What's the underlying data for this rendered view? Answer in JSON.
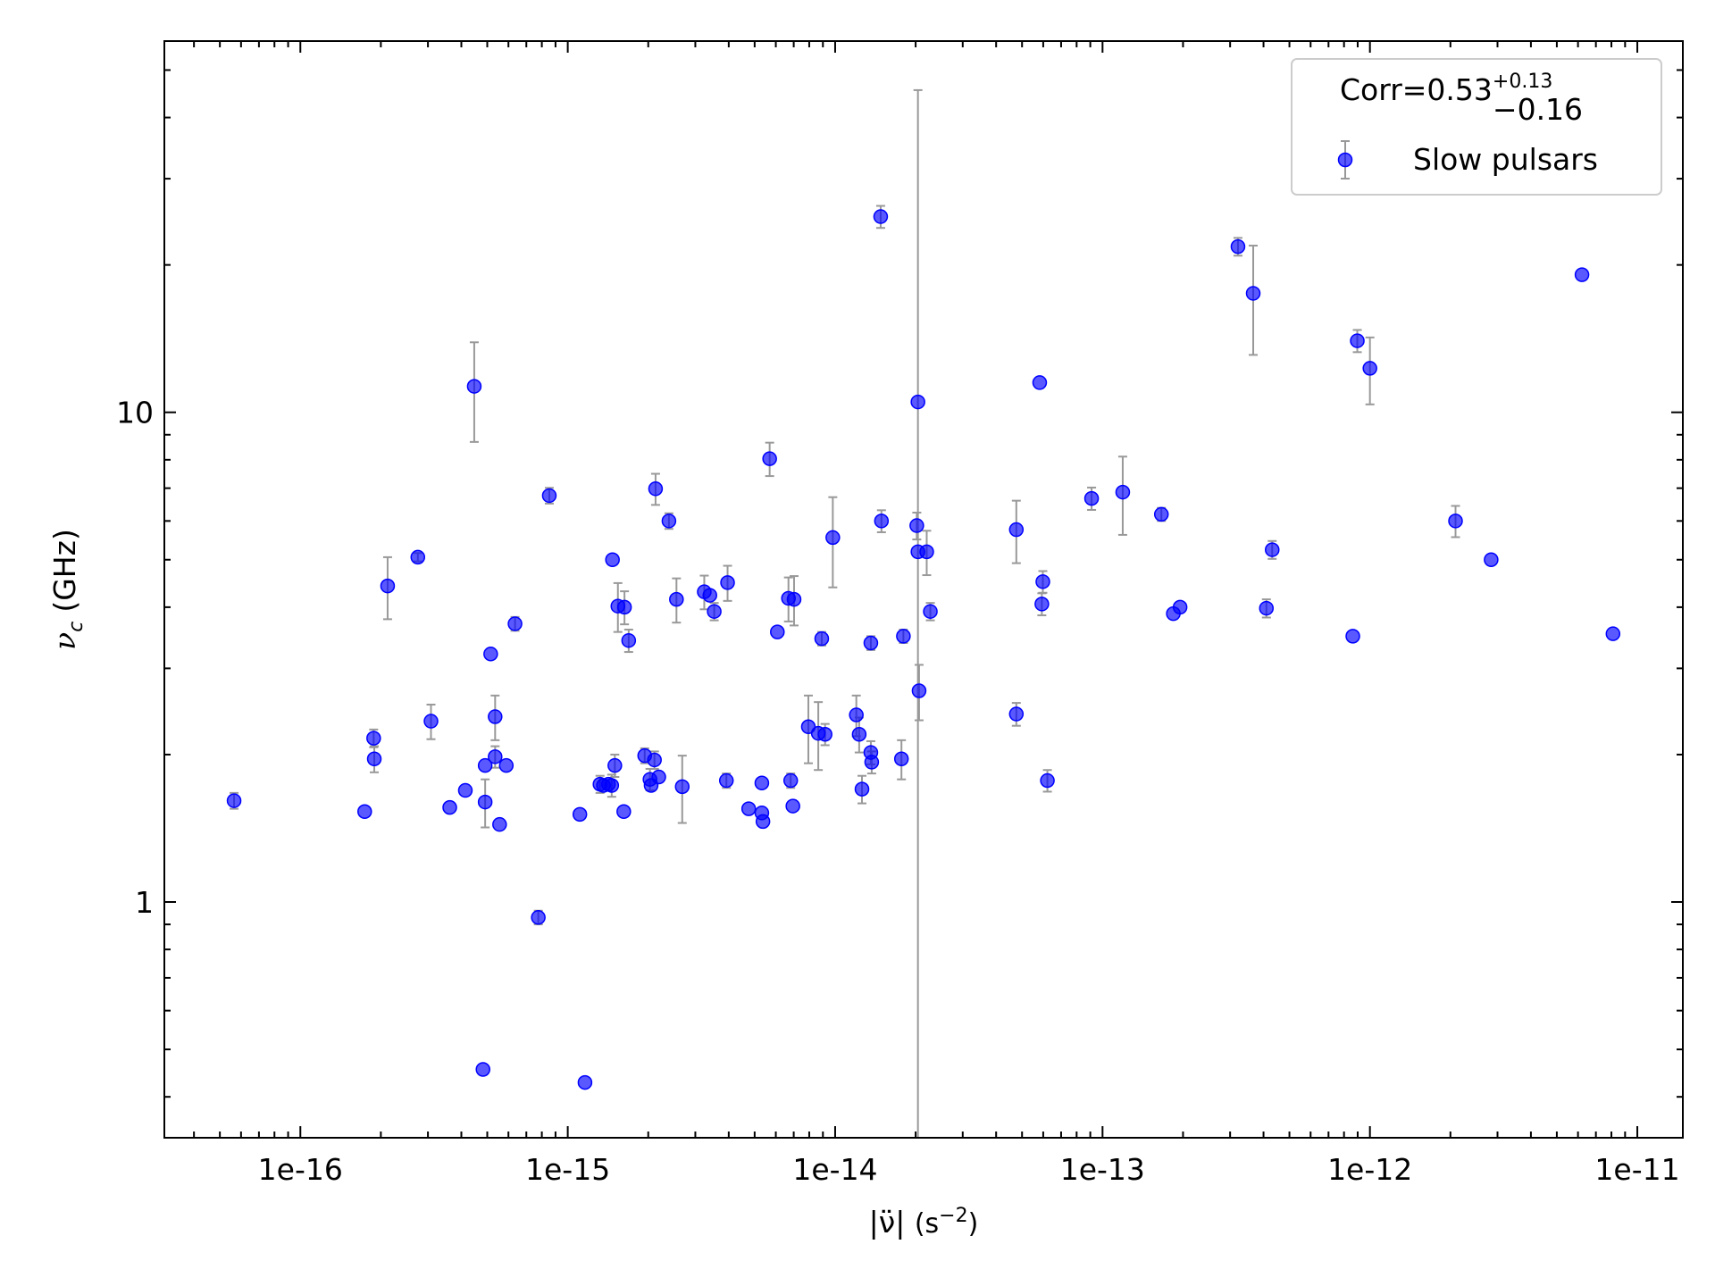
{
  "chart_data": {
    "type": "scatter",
    "xlabel": "|ν̈|",
    "xlabel_unit": "(s",
    "xlabel_exp": "−2",
    "xlabel_close": ")",
    "ylabel": "ν",
    "ylabel_sub": "c",
    "ylabel_unit": "(GHz)",
    "legend_title": "Corr=0.53",
    "legend_title_sup": "+0.13",
    "legend_title_sub": "−0.16",
    "legend": "upper right",
    "xscale": "log",
    "yscale": "log",
    "xlim": [
      3.1e-17,
      1.48e-11
    ],
    "ylim": [
      0.33,
      57.3
    ],
    "xticks": [
      {
        "value": 1e-16,
        "label": "1e-16"
      },
      {
        "value": 1e-15,
        "label": "1e-15"
      },
      {
        "value": 1e-14,
        "label": "1e-14"
      },
      {
        "value": 1e-13,
        "label": "1e-13"
      },
      {
        "value": 1e-12,
        "label": "1e-12"
      },
      {
        "value": 1e-11,
        "label": "1e-11"
      }
    ],
    "yticks": [
      1,
      10
    ],
    "series": [
      {
        "name": "Slow pulsars",
        "color": "#0000ff",
        "error_color": "#999999",
        "x": [
          5.65e-17,
          1.74e-16,
          1.88e-16,
          1.89e-16,
          2.12e-16,
          2.75e-16,
          3.08e-16,
          3.62e-16,
          4.14e-16,
          4.47e-16,
          4.91e-16,
          4.91e-16,
          4.82e-16,
          5.15e-16,
          5.35e-16,
          5.35e-16,
          5.56e-16,
          5.89e-16,
          6.35e-16,
          7.76e-16,
          8.53e-16,
          1.11e-15,
          1.16e-15,
          1.32e-15,
          1.36e-15,
          1.42e-15,
          1.46e-15,
          1.47e-15,
          1.5e-15,
          1.54e-15,
          1.62e-15,
          1.63e-15,
          1.69e-15,
          1.94e-15,
          2.03e-15,
          2.05e-15,
          2.11e-15,
          2.13e-15,
          2.19e-15,
          2.39e-15,
          2.55e-15,
          2.68e-15,
          3.24e-15,
          3.4e-15,
          3.53e-15,
          3.92e-15,
          3.96e-15,
          4.75e-15,
          5.32e-15,
          5.32e-15,
          5.37e-15,
          5.69e-15,
          6.08e-15,
          6.69e-15,
          6.82e-15,
          6.95e-15,
          7.02e-15,
          7.94e-15,
          8.65e-15,
          8.91e-15,
          9.17e-15,
          9.8e-15,
          1.2e-14,
          1.23e-14,
          1.26e-14,
          1.36e-14,
          1.36e-14,
          1.37e-14,
          1.49e-14,
          1.48e-14,
          1.77e-14,
          1.8e-14,
          2.02e-14,
          2.04e-14,
          2.04e-14,
          2.06e-14,
          2.2e-14,
          2.27e-14,
          4.76e-14,
          4.76e-14,
          5.82e-14,
          5.93e-14,
          5.98e-14,
          6.22e-14,
          9.1e-14,
          1.19e-13,
          1.66e-13,
          1.84e-13,
          1.95e-13,
          3.21e-13,
          3.66e-13,
          4.1e-13,
          4.31e-13,
          8.63e-13,
          8.97e-13,
          1e-12,
          2.09e-12,
          2.84e-12,
          6.21e-12,
          8.11e-12
        ],
        "values": [
          1.61,
          1.53,
          2.16,
          1.96,
          4.42,
          5.06,
          2.34,
          1.56,
          1.69,
          11.3,
          1.9,
          1.6,
          0.455,
          3.21,
          2.39,
          1.98,
          1.44,
          1.9,
          3.7,
          0.93,
          6.76,
          1.51,
          0.428,
          1.74,
          1.73,
          1.74,
          1.73,
          5.0,
          1.9,
          4.02,
          1.53,
          4.0,
          3.42,
          1.99,
          1.78,
          1.73,
          1.95,
          6.98,
          1.8,
          6.0,
          4.15,
          1.72,
          4.3,
          4.23,
          3.92,
          1.77,
          4.49,
          1.55,
          1.75,
          1.52,
          1.46,
          8.04,
          3.56,
          4.17,
          1.77,
          1.57,
          4.15,
          2.28,
          2.21,
          3.45,
          2.2,
          5.55,
          2.41,
          2.2,
          1.7,
          2.02,
          3.38,
          1.93,
          6.0,
          25.1,
          1.96,
          3.49,
          5.87,
          10.5,
          5.19,
          2.7,
          5.19,
          3.92,
          2.42,
          5.76,
          11.5,
          4.06,
          4.51,
          1.77,
          6.67,
          6.87,
          6.19,
          3.88,
          4.0,
          21.8,
          17.5,
          3.98,
          5.24,
          3.49,
          14.0,
          12.3,
          6.0,
          5.0,
          19.1,
          3.53
        ],
        "yerr": [
          0.06,
          null,
          0.09,
          0.12,
          0.64,
          0.1,
          0.19,
          null,
          null,
          2.6,
          null,
          0.18,
          null,
          null,
          0.25,
          0.1,
          null,
          null,
          0.12,
          0.03,
          0.25,
          null,
          null,
          0.07,
          null,
          null,
          0.09,
          null,
          0.1,
          0.46,
          null,
          0.31,
          0.18,
          0.07,
          0.09,
          null,
          0.08,
          0.51,
          null,
          0.22,
          0.43,
          0.27,
          0.34,
          null,
          0.16,
          0.06,
          0.37,
          null,
          null,
          null,
          null,
          0.63,
          null,
          0.43,
          0.06,
          null,
          0.48,
          0.36,
          0.35,
          0.11,
          0.11,
          1.16,
          0.23,
          0.18,
          0.11,
          0.11,
          0.11,
          0.1,
          0.31,
          1.3,
          0.18,
          0.11,
          0.37,
          35,
          null,
          0.35,
          0.54,
          0.16,
          0.13,
          0.84,
          null,
          0.21,
          0.23,
          0.09,
          0.35,
          1.25,
          0.19,
          null,
          null,
          0.91,
          4.4,
          0.17,
          0.22,
          null,
          0.73,
          1.92,
          0.44,
          null,
          null,
          null
        ]
      }
    ]
  }
}
